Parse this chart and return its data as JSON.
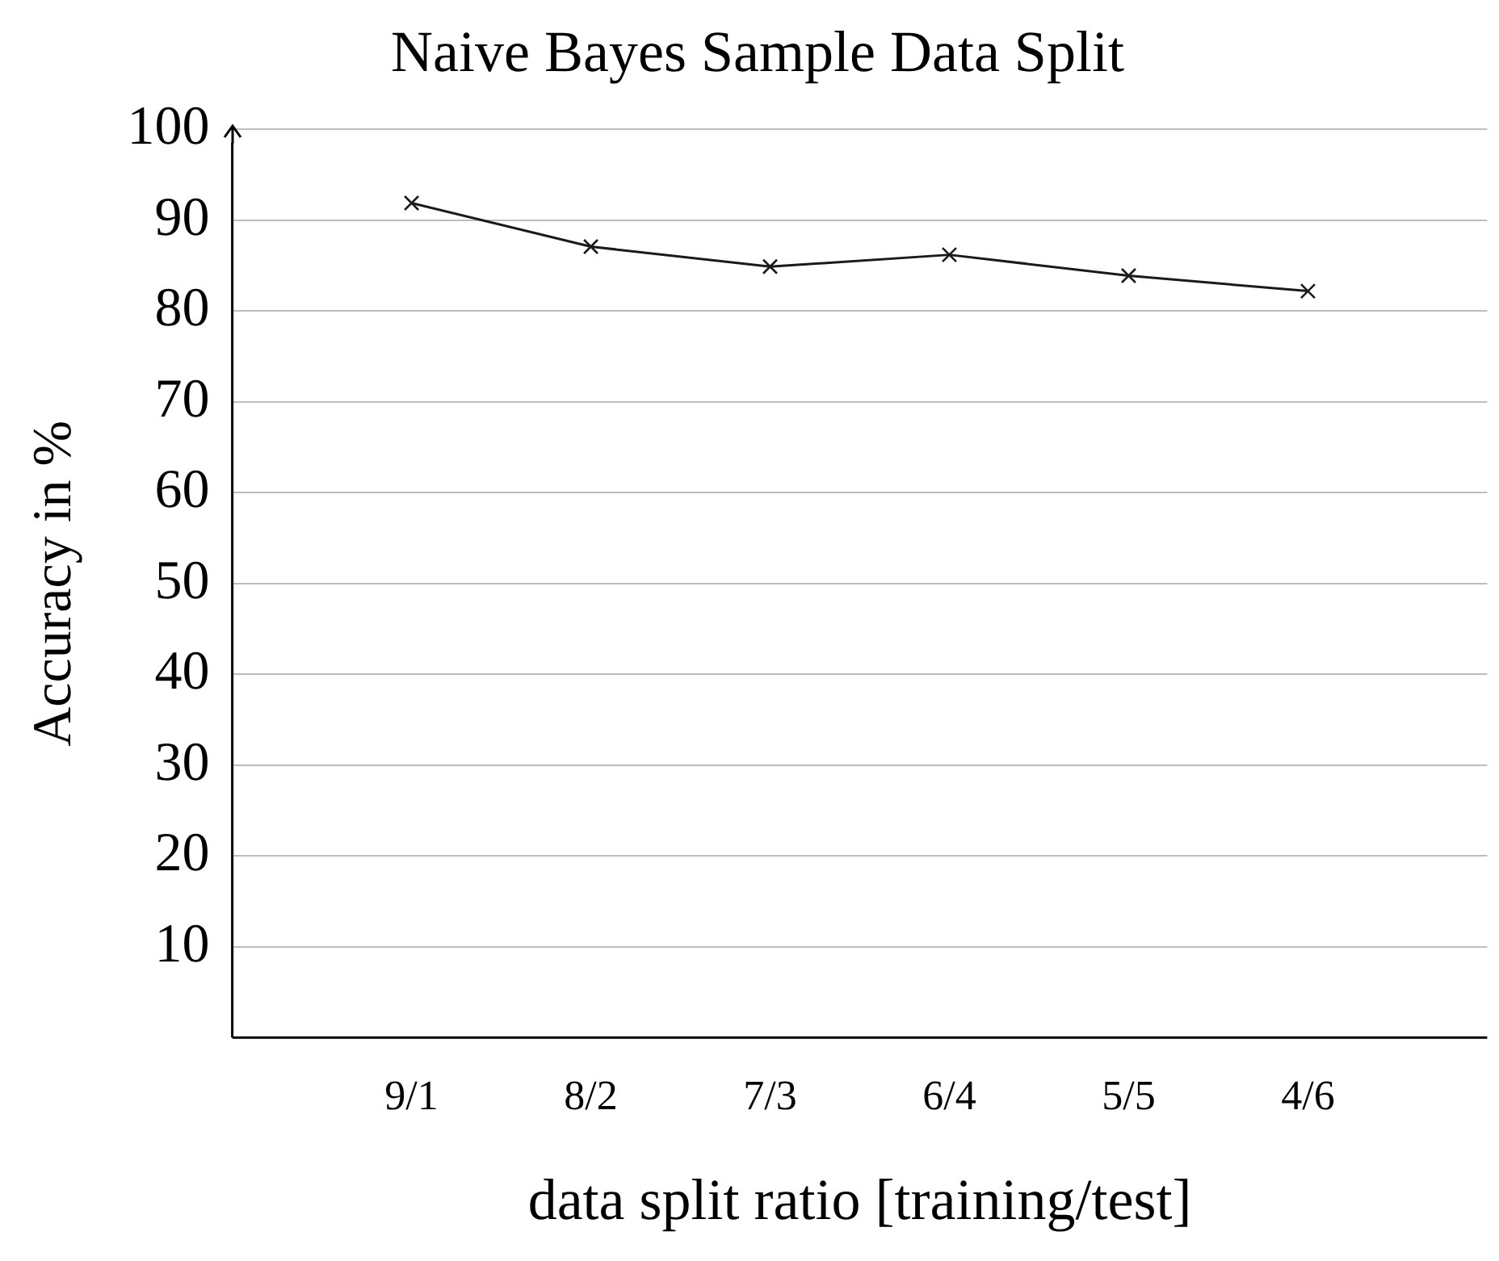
{
  "chart_data": {
    "type": "line",
    "title": "Naive Bayes Sample Data Split",
    "xlabel": "data split ratio [training/test]",
    "ylabel": "Accuracy in %",
    "categories": [
      "9/1",
      "8/2",
      "7/3",
      "6/4",
      "5/5",
      "4/6"
    ],
    "series": [
      {
        "color": "#1a1a1a",
        "values": [
          91.9,
          87.1,
          84.9,
          86.2,
          83.9,
          82.2
        ]
      }
    ],
    "ylim": [
      0,
      100
    ],
    "yticks": [
      10,
      20,
      30,
      40,
      50,
      60,
      70,
      80,
      90,
      100
    ],
    "grid": "y",
    "legend": false,
    "marker": "cross",
    "line_style": "solid"
  }
}
